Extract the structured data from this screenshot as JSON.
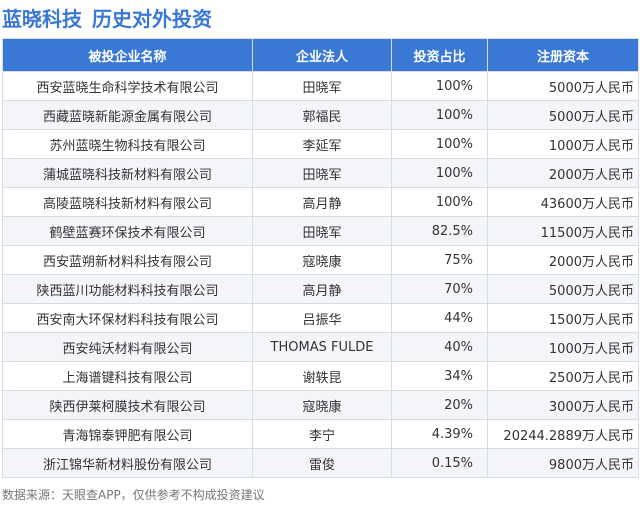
{
  "header": {
    "brand": "蓝晓科技",
    "subtitle": "历史对外投资"
  },
  "table": {
    "columns": [
      "被投企业名称",
      "企业法人",
      "投资占比",
      "注册资本"
    ],
    "rows": [
      [
        "西安蓝晓生命科学技术有限公司",
        "田晓军",
        "100%",
        "5000万人民币"
      ],
      [
        "西藏蓝晓新能源金属有限公司",
        "郭福民",
        "100%",
        "5000万人民币"
      ],
      [
        "苏州蓝晓生物科技有限公司",
        "李延军",
        "100%",
        "1000万人民币"
      ],
      [
        "蒲城蓝晓科技新材料有限公司",
        "田晓军",
        "100%",
        "2000万人民币"
      ],
      [
        "高陵蓝晓科技新材料有限公司",
        "高月静",
        "100%",
        "43600万人民币"
      ],
      [
        "鹤壁蓝赛环保技术有限公司",
        "田晓军",
        "82.5%",
        "11500万人民币"
      ],
      [
        "西安蓝朔新材料科技有限公司",
        "寇晓康",
        "75%",
        "2000万人民币"
      ],
      [
        "陕西蓝川功能材料科技有限公司",
        "高月静",
        "70%",
        "5000万人民币"
      ],
      [
        "西安南大环保材料科技有限公司",
        "吕振华",
        "44%",
        "1500万人民币"
      ],
      [
        "西安纯沃材料有限公司",
        "THOMAS FULDE",
        "40%",
        "1000万人民币"
      ],
      [
        "上海谱键科技有限公司",
        "谢轶昆",
        "34%",
        "2500万人民币"
      ],
      [
        "陕西伊莱柯膜技术有限公司",
        "寇晓康",
        "20%",
        "3000万人民币"
      ],
      [
        "青海锦泰钾肥有限公司",
        "李宁",
        "4.39%",
        "20244.2889万人民币"
      ],
      [
        "浙江锦华新材料股份有限公司",
        "雷俊",
        "0.15%",
        "9800万人民币"
      ]
    ]
  },
  "footer": {
    "source": "数据来源：天眼查APP，仅供参考不构成投资建议"
  },
  "colors": {
    "accent": "#3a78d6",
    "row_alt": "#f3f5f8",
    "border": "#d7dde5"
  }
}
